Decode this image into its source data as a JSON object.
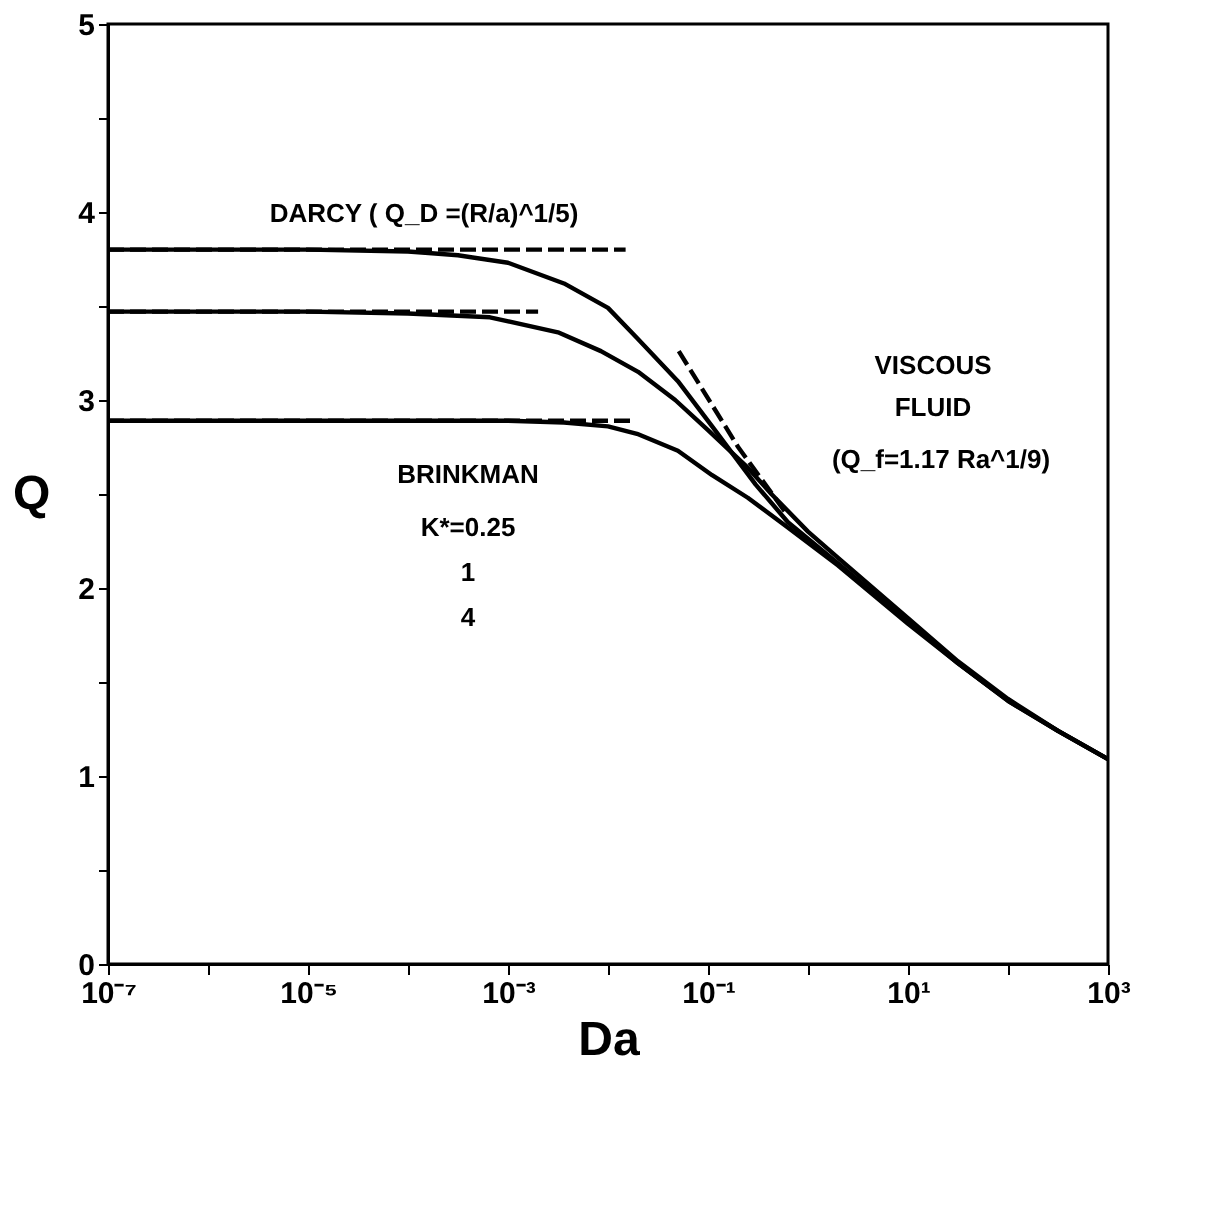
{
  "chart_data": {
    "type": "line",
    "xlabel": "Da",
    "ylabel": "Q",
    "log": "x",
    "grid": false,
    "marker": "none",
    "xlim": [
      1e-07,
      1000
    ],
    "ylim": [
      0,
      5
    ],
    "xticks": [
      {
        "value": 1e-07,
        "label": "10⁻⁷"
      },
      {
        "value": 1e-06,
        "label": null
      },
      {
        "value": 1e-05,
        "label": "10⁻⁵"
      },
      {
        "value": 0.0001,
        "label": null
      },
      {
        "value": 0.001,
        "label": "10⁻³"
      },
      {
        "value": 0.01,
        "label": null
      },
      {
        "value": 0.1,
        "label": "10⁻¹"
      },
      {
        "value": 1,
        "label": null
      },
      {
        "value": 10,
        "label": "10¹"
      },
      {
        "value": 100,
        "label": null
      },
      {
        "value": 1000,
        "label": "10³"
      }
    ],
    "yticks": [
      0,
      {
        "value": 0.5,
        "label": null
      },
      1,
      {
        "value": 1.5,
        "label": null
      },
      2,
      {
        "value": 2.5,
        "label": null
      },
      3,
      {
        "value": 3.5,
        "label": null
      },
      4,
      {
        "value": 4.5,
        "label": null
      },
      5
    ],
    "series": [
      {
        "color": "#000000",
        "line_style": "solid",
        "x": [
          1e-07,
          1e-05,
          0.0001,
          0.000316,
          0.001,
          0.00363,
          0.01,
          0.0195,
          0.05,
          0.11,
          0.3,
          0.63,
          2,
          10,
          31.6,
          100,
          316,
          1000
        ],
        "values": [
          3.8,
          3.8,
          3.79,
          3.77,
          3.73,
          3.62,
          3.49,
          3.33,
          3.1,
          2.86,
          2.55,
          2.35,
          2.13,
          1.82,
          1.6,
          1.4,
          1.24,
          1.09
        ]
      },
      {
        "color": "#000000",
        "line_style": "solid",
        "x": [
          1e-07,
          1e-05,
          0.0001,
          0.00066,
          0.00316,
          0.0085,
          0.02,
          0.047,
          0.1,
          0.25,
          0.43,
          1,
          2,
          10,
          31.6,
          100,
          316,
          1000
        ],
        "values": [
          3.47,
          3.47,
          3.46,
          3.44,
          3.36,
          3.26,
          3.15,
          3.0,
          2.84,
          2.64,
          2.5,
          2.3,
          2.16,
          1.84,
          1.61,
          1.41,
          1.24,
          1.09
        ]
      },
      {
        "color": "#000000",
        "line_style": "solid",
        "x": [
          1e-07,
          0.0001,
          0.001,
          0.00363,
          0.01,
          0.0195,
          0.05,
          0.11,
          0.25,
          0.6,
          2,
          10,
          31.6,
          100,
          316,
          1000
        ],
        "values": [
          2.89,
          2.89,
          2.89,
          2.88,
          2.86,
          2.82,
          2.73,
          2.6,
          2.48,
          2.33,
          2.12,
          1.81,
          1.6,
          1.4,
          1.24,
          1.09
        ]
      },
      {
        "color": "#000000",
        "line_style": "dashed",
        "x": [
          1e-07,
          0.015
        ],
        "values": [
          3.8,
          3.8
        ]
      },
      {
        "color": "#000000",
        "line_style": "dashed",
        "x": [
          1e-07,
          0.002
        ],
        "values": [
          3.47,
          3.47
        ]
      },
      {
        "color": "#000000",
        "line_style": "dashed",
        "x": [
          1e-07,
          0.018
        ],
        "values": [
          2.89,
          2.89
        ]
      },
      {
        "color": "#000000",
        "line_style": "dashed",
        "x": [
          0.051,
          0.2,
          0.6
        ],
        "values": [
          3.26,
          2.75,
          2.4
        ]
      }
    ],
    "annotations": [
      "DARCY ( Q_D =(R/a)^1/5)",
      "VISCOUS",
      "FLUID",
      "(Q_f=1.17 Ra^1/9)",
      "BRINKMAN",
      "K*=0.25",
      "1",
      "4"
    ]
  }
}
